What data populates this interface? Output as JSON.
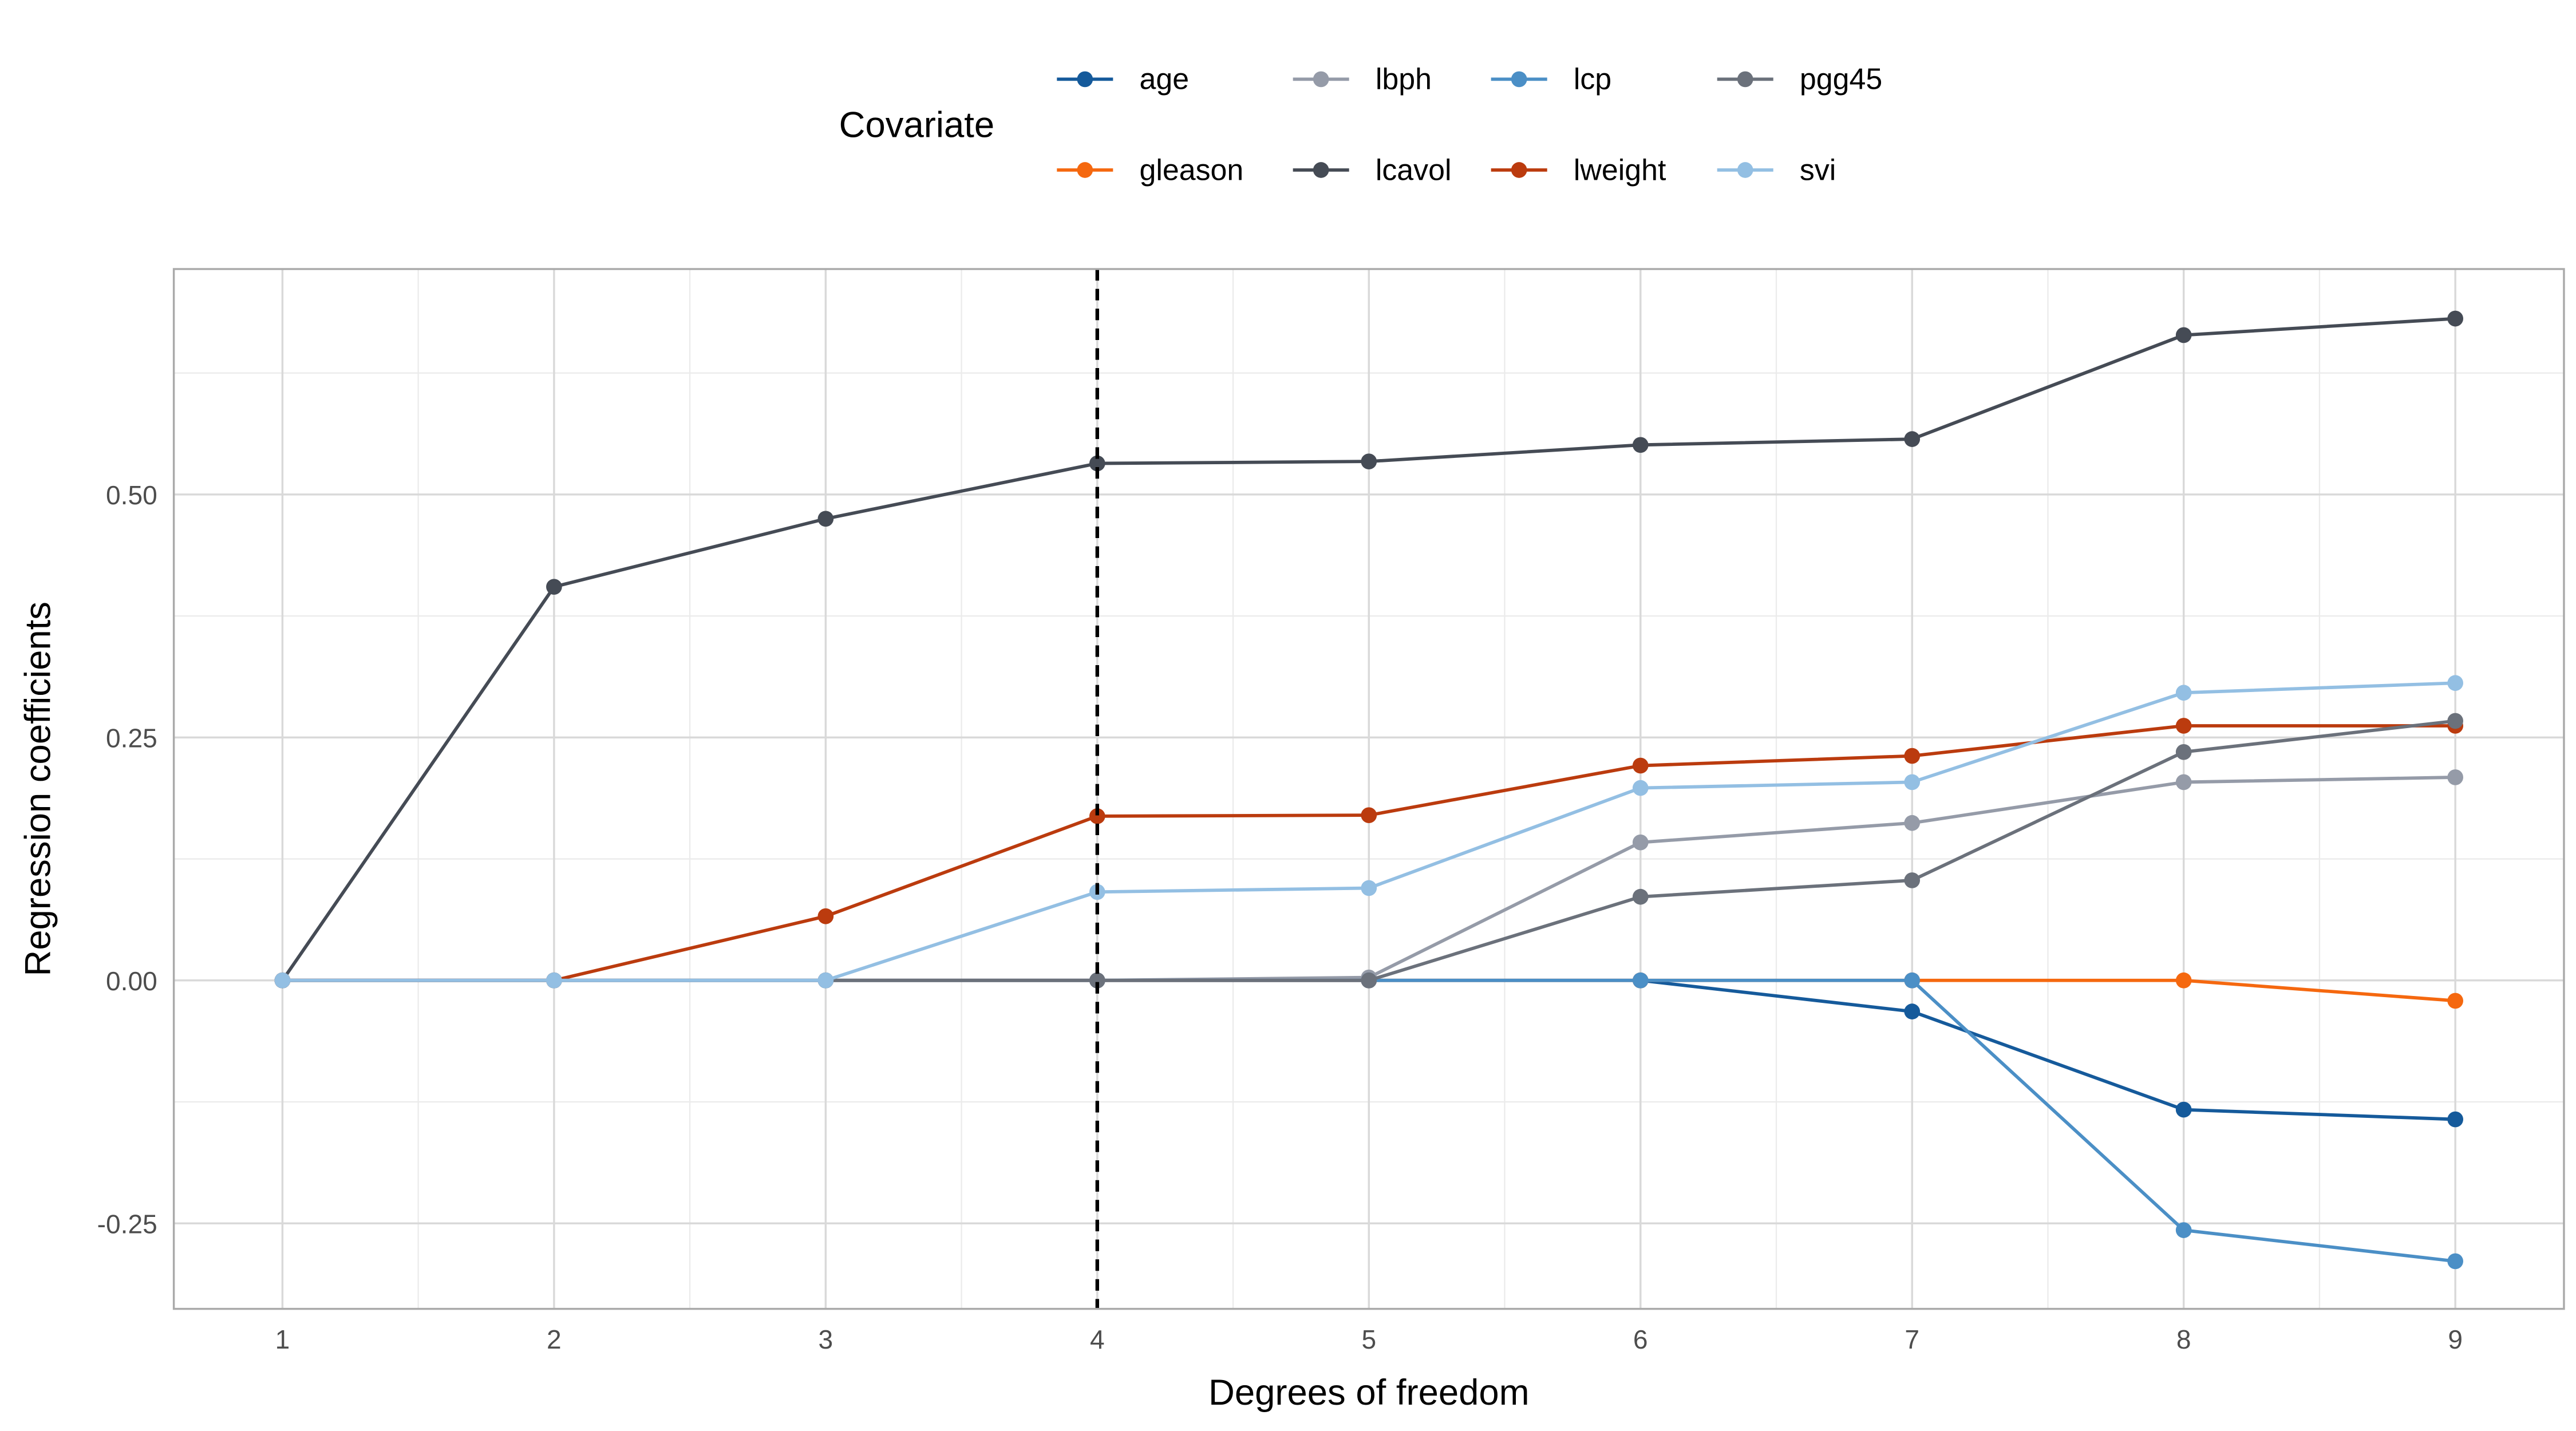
{
  "chart_data": {
    "type": "line",
    "title": "",
    "xlabel": "Degrees of freedom",
    "ylabel": "Regression coefficients",
    "x": [
      1,
      2,
      3,
      4,
      5,
      6,
      7,
      8,
      9
    ],
    "xlim": [
      0.6,
      9.4
    ],
    "ylim": [
      -0.338,
      0.732
    ],
    "x_ticks": [
      "1",
      "2",
      "3",
      "4",
      "5",
      "6",
      "7",
      "8",
      "9"
    ],
    "y_ticks": [
      {
        "v": -0.25,
        "label": "-0.25"
      },
      {
        "v": 0,
        "label": "0.00"
      },
      {
        "v": 0.25,
        "label": "0.25"
      },
      {
        "v": 0.5,
        "label": "0.50"
      }
    ],
    "grid": true,
    "vline": {
      "x": 4,
      "style": "dashed"
    },
    "legend": {
      "title": "Covariate",
      "placement": "top"
    },
    "series": [
      {
        "name": "age",
        "color": "#155a9b",
        "values": [
          0,
          0,
          0,
          0,
          0,
          0,
          -0.032,
          -0.133,
          -0.143
        ]
      },
      {
        "name": "gleason",
        "color": "#f5680f",
        "values": [
          0,
          0,
          0,
          0,
          0,
          0,
          0,
          0,
          -0.021
        ]
      },
      {
        "name": "lbph",
        "color": "#959ba8",
        "values": [
          0,
          0,
          0,
          0,
          0.003,
          0.142,
          0.162,
          0.204,
          0.209
        ]
      },
      {
        "name": "lcavol",
        "color": "#454b55",
        "values": [
          0,
          0.405,
          0.475,
          0.532,
          0.534,
          0.551,
          0.557,
          0.664,
          0.681
        ]
      },
      {
        "name": "lcp",
        "color": "#4b8fc6",
        "values": [
          0,
          0,
          0,
          0,
          0,
          0,
          0,
          -0.257,
          -0.289
        ]
      },
      {
        "name": "lweight",
        "color": "#bb3b0e",
        "values": [
          0,
          0,
          0.066,
          0.169,
          0.17,
          0.221,
          0.231,
          0.262,
          0.262
        ]
      },
      {
        "name": "pgg45",
        "color": "#6b717b",
        "values": [
          0,
          0,
          0,
          0,
          0,
          0.086,
          0.103,
          0.235,
          0.267
        ]
      },
      {
        "name": "svi",
        "color": "#93bfe3",
        "values": [
          0,
          0,
          0,
          0.091,
          0.095,
          0.198,
          0.204,
          0.296,
          0.306
        ]
      }
    ]
  }
}
